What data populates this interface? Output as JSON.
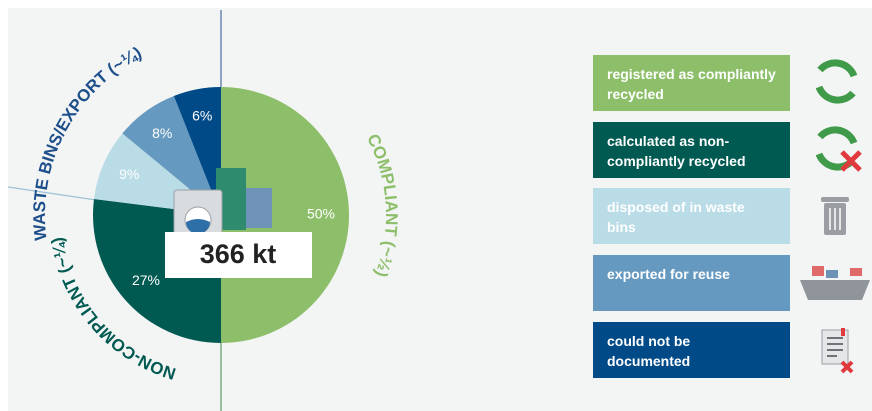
{
  "chart_data": {
    "type": "pie",
    "categories": [
      "registered as compliantly recycled",
      "calculated as non-compliantly recycled",
      "disposed of in waste bins",
      "exported for reuse",
      "could not be documented"
    ],
    "values": [
      50,
      27,
      9,
      8,
      6
    ],
    "value_labels": [
      "50%",
      "27%",
      "9%",
      "8%",
      "6%"
    ],
    "colors": [
      "#8dbf6a",
      "#005a52",
      "#b9dce6",
      "#6699bf",
      "#004a87"
    ],
    "center_label": "366 kt",
    "annotations": [
      "WASTE BINS/EXPORT (~¼)",
      "COMPLIANT (~½)",
      "NON-COMPLIANT (~¼)"
    ]
  }
}
